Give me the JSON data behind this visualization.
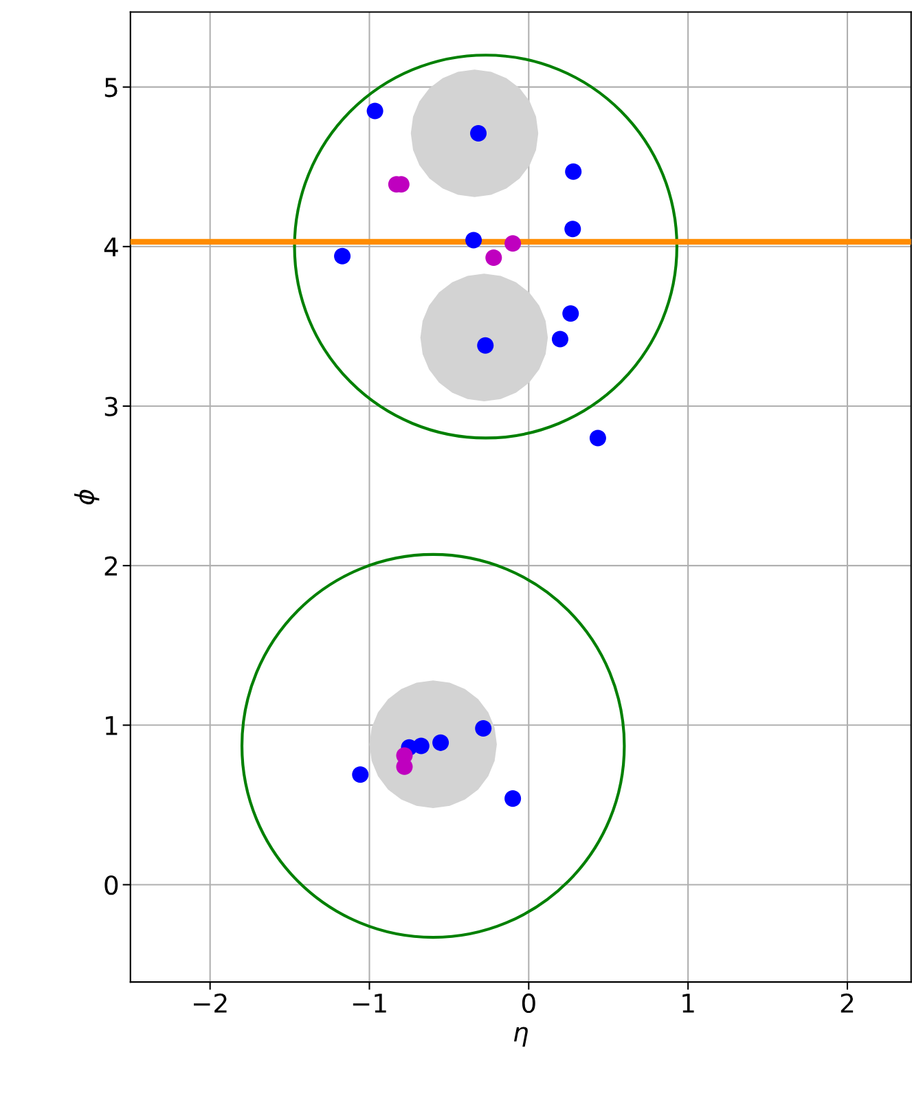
{
  "chart_data": {
    "type": "scatter",
    "xlabel": "η",
    "ylabel": "ϕ",
    "xlim": [
      -2.5,
      2.4
    ],
    "ylim": [
      -0.61,
      5.47
    ],
    "xticks": [
      {
        "value": -2,
        "label": "−2"
      },
      {
        "value": -1,
        "label": "−1"
      },
      0,
      1,
      2
    ],
    "yticks": [
      0,
      1,
      2,
      3,
      4,
      5
    ],
    "grid": true,
    "legend": false,
    "ref_lines": [
      {
        "axis": "y",
        "value": 4.03,
        "color": "#ff8c00"
      }
    ],
    "series": [
      {
        "type": "area",
        "color": "#d3d3d3",
        "x": [
          0.06,
          0.046,
          0.006,
          -0.057,
          -0.14,
          -0.236,
          -0.34,
          -0.444,
          -0.54,
          -0.623,
          -0.686,
          -0.726,
          -0.74,
          -0.726,
          -0.686,
          -0.623,
          -0.54,
          -0.444,
          -0.34,
          -0.236,
          -0.14,
          -0.057,
          0.006,
          0.046
        ],
        "values": [
          4.71,
          4.814,
          4.91,
          4.993,
          5.056,
          5.096,
          5.11,
          5.096,
          5.056,
          4.993,
          4.91,
          4.814,
          4.71,
          4.606,
          4.51,
          4.427,
          4.364,
          4.324,
          4.31,
          4.324,
          4.364,
          4.427,
          4.51,
          4.606
        ]
      },
      {
        "type": "area",
        "color": "#d3d3d3",
        "x": [
          0.12,
          0.106,
          0.066,
          0.003,
          -0.08,
          -0.176,
          -0.28,
          -0.384,
          -0.48,
          -0.563,
          -0.626,
          -0.666,
          -0.68,
          -0.666,
          -0.626,
          -0.563,
          -0.48,
          -0.384,
          -0.28,
          -0.176,
          -0.08,
          0.003,
          0.066,
          0.106
        ],
        "values": [
          3.43,
          3.534,
          3.63,
          3.713,
          3.776,
          3.816,
          3.83,
          3.816,
          3.776,
          3.713,
          3.63,
          3.534,
          3.43,
          3.326,
          3.23,
          3.147,
          3.084,
          3.044,
          3.03,
          3.044,
          3.084,
          3.147,
          3.23,
          3.326
        ]
      },
      {
        "type": "area",
        "color": "#d3d3d3",
        "x": [
          -0.2,
          -0.214,
          -0.254,
          -0.317,
          -0.4,
          -0.496,
          -0.6,
          -0.704,
          -0.8,
          -0.883,
          -0.946,
          -0.986,
          -1.0,
          -0.986,
          -0.946,
          -0.883,
          -0.8,
          -0.704,
          -0.6,
          -0.496,
          -0.4,
          -0.317,
          -0.254,
          -0.214
        ],
        "values": [
          0.88,
          0.984,
          1.08,
          1.163,
          1.226,
          1.266,
          1.28,
          1.266,
          1.226,
          1.163,
          1.08,
          0.984,
          0.88,
          0.776,
          0.68,
          0.597,
          0.534,
          0.494,
          0.48,
          0.494,
          0.534,
          0.597,
          0.68,
          0.776
        ]
      },
      {
        "marker": "circle",
        "color": "#0000ff",
        "x": [
          -0.965,
          -0.316,
          0.28,
          0.276,
          -0.346,
          -1.17,
          0.263,
          0.197,
          -0.272,
          0.434,
          -1.057,
          -0.75,
          -0.675,
          -0.553,
          -0.285,
          -0.1
        ],
        "values": [
          4.85,
          4.71,
          4.47,
          4.11,
          4.04,
          3.94,
          3.58,
          3.42,
          3.38,
          2.8,
          0.69,
          0.86,
          0.87,
          0.89,
          0.98,
          0.54
        ]
      },
      {
        "marker": "circle",
        "color": "#bf00bf",
        "x": [
          -0.83,
          -0.8,
          -0.1,
          -0.22,
          -0.78,
          -0.78
        ],
        "values": [
          4.39,
          4.39,
          4.02,
          3.93,
          0.81,
          0.74
        ]
      }
    ]
  }
}
